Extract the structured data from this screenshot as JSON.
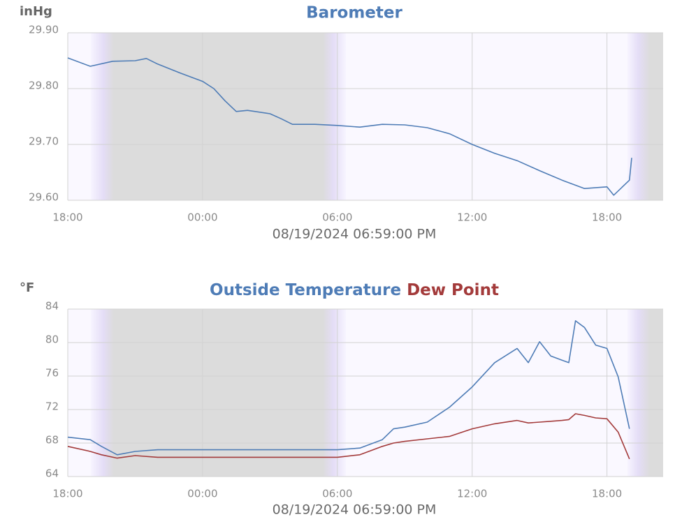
{
  "chart_data": [
    {
      "type": "line",
      "title": "Barometer",
      "y_label": "inHg",
      "x_label": "08/19/2024 06:59:00 PM",
      "color": "#4e7cb6",
      "x": [
        0,
        1,
        2,
        3,
        3.5,
        4,
        5,
        6,
        6.5,
        7,
        7.5,
        8,
        9,
        9.5,
        10,
        11,
        12,
        13,
        14,
        15,
        16,
        17,
        18,
        19,
        20,
        21,
        22,
        23,
        24,
        24.3,
        25,
        25.1
      ],
      "values": [
        29.855,
        29.84,
        29.849,
        29.85,
        29.854,
        29.844,
        29.828,
        29.813,
        29.8,
        29.778,
        29.759,
        29.761,
        29.755,
        29.746,
        29.736,
        29.736,
        29.734,
        29.731,
        29.736,
        29.735,
        29.73,
        29.719,
        29.7,
        29.684,
        29.671,
        29.653,
        29.636,
        29.621,
        29.624,
        29.609,
        29.636,
        29.676
      ],
      "xlim": [
        0,
        26.5
      ],
      "xticks": [
        {
          "value": 0,
          "label": "18:00"
        },
        {
          "value": 6,
          "label": "00:00"
        },
        {
          "value": 12,
          "label": "06:00"
        },
        {
          "value": 18,
          "label": "12:00"
        },
        {
          "value": 24,
          "label": "18:00"
        }
      ],
      "ylim": [
        29.6,
        29.9
      ],
      "yticks": [
        {
          "value": 29.6,
          "label": "29.60"
        },
        {
          "value": 29.7,
          "label": "29.70"
        },
        {
          "value": 29.8,
          "label": "29.80"
        },
        {
          "value": 29.9,
          "label": "29.90"
        }
      ],
      "grid": true
    },
    {
      "type": "line",
      "y_label": "°F",
      "x_label": "08/19/2024 06:59:00 PM",
      "x": [
        0,
        1,
        1.5,
        2.2,
        3,
        4,
        6,
        8,
        10,
        12,
        13,
        14,
        14.5,
        15,
        16,
        17,
        18,
        19,
        20,
        20.5,
        21,
        21.5,
        22,
        22.3,
        22.6,
        23,
        23.5,
        24,
        24.5,
        25
      ],
      "series": [
        {
          "name": "Outside Temperature",
          "color": "#4e7cb6",
          "values": [
            68.7,
            68.4,
            67.6,
            66.6,
            67.0,
            67.2,
            67.2,
            67.2,
            67.2,
            67.2,
            67.4,
            68.4,
            69.7,
            69.9,
            70.5,
            72.3,
            74.7,
            77.6,
            79.3,
            77.6,
            80.1,
            78.4,
            77.9,
            77.6,
            82.6,
            81.8,
            79.7,
            79.3,
            75.9,
            69.7
          ]
        },
        {
          "name": "Dew Point",
          "color": "#a33a3a",
          "values": [
            67.6,
            67.0,
            66.6,
            66.2,
            66.5,
            66.3,
            66.3,
            66.3,
            66.3,
            66.3,
            66.6,
            67.6,
            68.0,
            68.2,
            68.5,
            68.8,
            69.7,
            70.3,
            70.7,
            70.4,
            70.5,
            70.6,
            70.7,
            70.8,
            71.5,
            71.3,
            71.0,
            70.9,
            69.3,
            66.1
          ]
        }
      ],
      "xlim": [
        0,
        26.5
      ],
      "xticks": [
        {
          "value": 0,
          "label": "18:00"
        },
        {
          "value": 6,
          "label": "00:00"
        },
        {
          "value": 12,
          "label": "06:00"
        },
        {
          "value": 18,
          "label": "12:00"
        },
        {
          "value": 24,
          "label": "18:00"
        }
      ],
      "ylim": [
        64,
        84
      ],
      "yticks": [
        64,
        68,
        72,
        76,
        80,
        84
      ],
      "grid": true
    }
  ]
}
